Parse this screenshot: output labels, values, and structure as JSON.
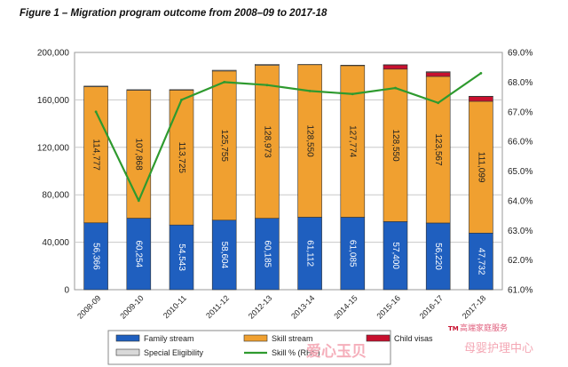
{
  "page": {
    "title": "Figure 1 – Migration program outcome from 2008–09 to 2017-18"
  },
  "chart_data": {
    "type": "bar",
    "stacked": true,
    "categories": [
      "2008-09",
      "2009-10",
      "2010-11",
      "2011-12",
      "2012-13",
      "2013-14",
      "2014-15",
      "2015-16",
      "2016-17",
      "2017-18"
    ],
    "series": [
      {
        "name": "Family stream",
        "color": "#1f5fbf",
        "values": [
          56366,
          60254,
          54543,
          58604,
          60185,
          61112,
          61085,
          57400,
          56220,
          47732
        ],
        "labels": [
          "56,366",
          "60,254",
          "54,543",
          "58,604",
          "60,185",
          "61,112",
          "61,085",
          "57,400",
          "56,220",
          "47,732"
        ]
      },
      {
        "name": "Skill stream",
        "color": "#f0a030",
        "values": [
          114777,
          107868,
          113725,
          125755,
          128973,
          128550,
          127774,
          128550,
          123567,
          111099
        ],
        "labels": [
          "114,777",
          "107,868",
          "113,725",
          "125,755",
          "128,973",
          "128,550",
          "127,774",
          "128,550",
          "123,567",
          "111,099"
        ]
      },
      {
        "name": "Child visas",
        "color": "#c8102e",
        "values": [
          0,
          0,
          0,
          0,
          0,
          0,
          0,
          3400,
          3400,
          4000
        ]
      },
      {
        "name": "Special Eligibility",
        "color": "#d9d9d9",
        "values": [
          500,
          500,
          400,
          640,
          840,
          230,
          390,
          310,
          570,
          240
        ]
      }
    ],
    "line": {
      "name": "Skill % (RHS)",
      "color": "#2e9a2e",
      "axis": "right",
      "values": [
        67.0,
        64.0,
        67.4,
        68.0,
        67.9,
        67.7,
        67.6,
        67.8,
        67.3,
        68.3
      ]
    },
    "y_left": {
      "min": 0,
      "max": 200000,
      "ticks": [
        "0",
        "40,000",
        "80,000",
        "120,000",
        "160,000",
        "200,000"
      ]
    },
    "y_right": {
      "min": 61.0,
      "max": 69.0,
      "ticks": [
        "61.0%",
        "62.0%",
        "63.0%",
        "64.0%",
        "65.0%",
        "66.0%",
        "67.0%",
        "68.0%",
        "69.0%"
      ]
    },
    "grid": true,
    "legend": {
      "position": "bottom",
      "items": [
        {
          "label": "Family stream",
          "key": "family"
        },
        {
          "label": "Skill stream",
          "key": "skill"
        },
        {
          "label": "Child visas",
          "key": "child"
        },
        {
          "label": "Special Eligibility",
          "key": "special"
        },
        {
          "label": "Skill % (RHS)",
          "key": "line"
        }
      ]
    }
  },
  "watermarks": {
    "left_text": "爱心玉贝",
    "right_top_text": "高端家庭服务",
    "right_top_mark": "TM",
    "right_text": "母婴护理中心"
  }
}
